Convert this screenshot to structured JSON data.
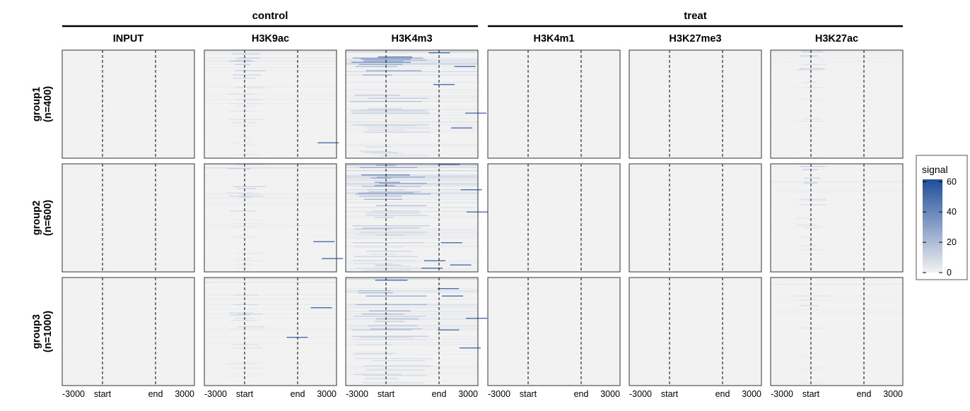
{
  "chart_data": {
    "type": "heatmap",
    "group_labels": [
      "control",
      "treat"
    ],
    "column_groups": [
      {
        "label": "control",
        "columns": [
          "INPUT",
          "H3K9ac",
          "H3K4m3"
        ]
      },
      {
        "label": "treat",
        "columns": [
          "H3K4m1",
          "H3K27me3",
          "H3K27ac"
        ]
      }
    ],
    "columns": [
      "INPUT",
      "H3K9ac",
      "H3K4m3",
      "H3K4m1",
      "H3K27me3",
      "H3K27ac"
    ],
    "rows": [
      {
        "name": "group1",
        "count_label": "(n=400)",
        "n": 400
      },
      {
        "name": "group2",
        "count_label": "(n=600)",
        "n": 600
      },
      {
        "name": "group3",
        "count_label": "(n=1000)",
        "n": 1000
      }
    ],
    "x_ticks": [
      "-3000",
      "start",
      "end",
      "3000"
    ],
    "reference_lines": [
      "start",
      "end"
    ],
    "legend": {
      "title": "signal",
      "ticks": [
        "0",
        "20",
        "40",
        "60"
      ],
      "range": [
        0,
        60
      ],
      "colors": {
        "low": "#f2f2f2",
        "high": "#1f4e9c"
      },
      "placement": "right"
    },
    "relative_signal_intensity": {
      "INPUT": 0.0,
      "H3K9ac": 0.35,
      "H3K4m3": 0.85,
      "H3K4m1": 0.1,
      "H3K27me3": 0.02,
      "H3K27ac": 0.25
    }
  }
}
